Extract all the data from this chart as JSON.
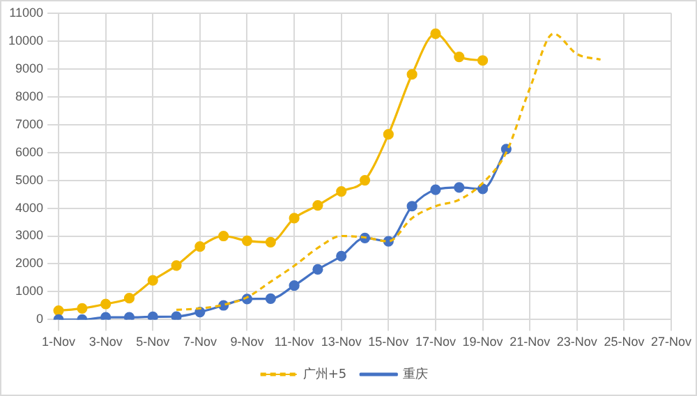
{
  "chart_data": {
    "type": "line",
    "categories": [
      "1-Nov",
      null,
      "3-Nov",
      null,
      "5-Nov",
      null,
      "7-Nov",
      null,
      "9-Nov",
      null,
      "11-Nov",
      null,
      "13-Nov",
      null,
      "15-Nov",
      null,
      "17-Nov",
      null,
      "19-Nov",
      null,
      "21-Nov",
      null,
      "23-Nov",
      null,
      "25-Nov",
      null,
      "27-Nov"
    ],
    "series": [
      {
        "name": "广州+5",
        "color": "#f2b800",
        "line_style": "dashed",
        "marker": "none",
        "values": [
          null,
          null,
          null,
          null,
          null,
          350,
          400,
          530,
          800,
          1360,
          1930,
          2570,
          3000,
          2950,
          2810,
          3640,
          4070,
          4300,
          4900,
          6000,
          8300,
          10260,
          9530,
          9330,
          null,
          null,
          null
        ]
      },
      {
        "name": "重庆",
        "color": "#4472c4",
        "line_style": "solid",
        "marker": "circle",
        "values": [
          0,
          0,
          80,
          80,
          100,
          110,
          270,
          510,
          740,
          750,
          1220,
          1800,
          2280,
          2930,
          2810,
          4070,
          4660,
          4740,
          4690,
          6120,
          null,
          null,
          null,
          null,
          null,
          null,
          null
        ]
      },
      {
        "color": "#f2b800",
        "line_style": "solid",
        "marker": "circle",
        "values": [
          320,
          400,
          560,
          770,
          1410,
          1940,
          2620,
          3000,
          2830,
          2780,
          3640,
          4100,
          4600,
          5000,
          6650,
          8800,
          10260,
          9430,
          9300,
          null,
          null,
          null,
          null,
          null,
          null,
          null,
          null
        ]
      }
    ],
    "ylim": [
      0,
      11000
    ],
    "yticks": [
      0,
      1000,
      2000,
      3000,
      4000,
      5000,
      6000,
      7000,
      8000,
      9000,
      10000,
      11000
    ],
    "grid": true,
    "legend": "bottom"
  }
}
